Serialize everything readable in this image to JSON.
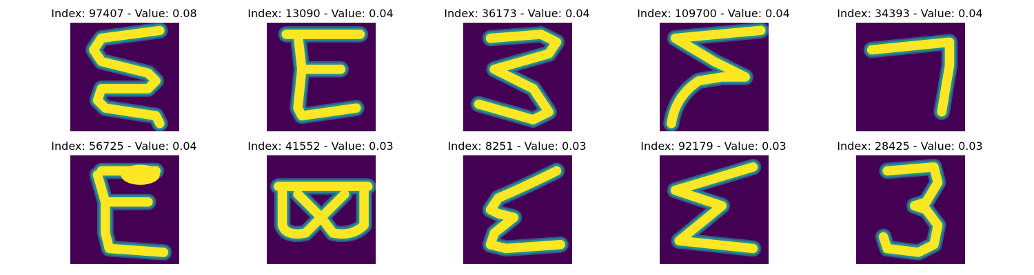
{
  "colors": {
    "background": "#440154",
    "stroke_core": "#fde725",
    "stroke_edge": "#21908d",
    "stroke_halo": "#3b528b"
  },
  "panels": [
    {
      "title": "Index: 97407 - Value: 0.08"
    },
    {
      "title": "Index: 13090 - Value: 0.04"
    },
    {
      "title": "Index: 36173 - Value: 0.04"
    },
    {
      "title": "Index: 109700 - Value: 0.04"
    },
    {
      "title": "Index: 34393 - Value: 0.04"
    },
    {
      "title": "Index: 56725 - Value: 0.04"
    },
    {
      "title": "Index: 41552 - Value: 0.03"
    },
    {
      "title": "Index: 8251 - Value: 0.03"
    },
    {
      "title": "Index: 92179 - Value: 0.03"
    },
    {
      "title": "Index: 28425 - Value: 0.03"
    }
  ]
}
